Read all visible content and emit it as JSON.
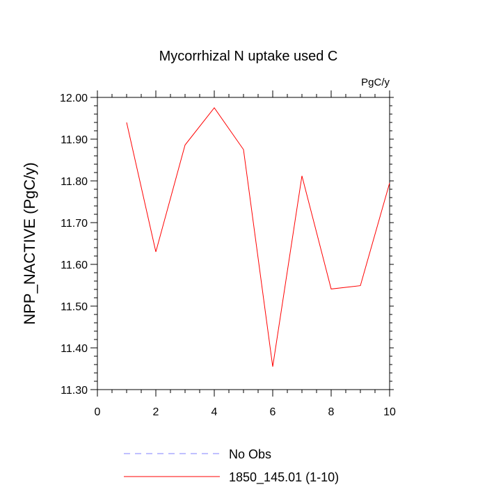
{
  "chart_data": {
    "type": "line",
    "title": "Mycorrhizal N uptake used C",
    "units_label": "PgC/y",
    "xlabel": "",
    "ylabel": "NPP_NACTIVE  (PgC/y)",
    "xlim": [
      0,
      10
    ],
    "ylim": [
      11.3,
      12.0
    ],
    "x_ticks": [
      "0",
      "2",
      "4",
      "6",
      "8",
      "10"
    ],
    "y_ticks": [
      "11.30",
      "11.40",
      "11.50",
      "11.60",
      "11.70",
      "11.80",
      "11.90",
      "12.00"
    ],
    "grid": false,
    "legend_position": "bottom",
    "series": [
      {
        "name": "No Obs",
        "color": "#8080ff",
        "dash": "dashed",
        "x": [],
        "values": []
      },
      {
        "name": "1850_145.01 (1-10)",
        "color": "#ff0000",
        "dash": "solid",
        "x": [
          1,
          2,
          3,
          4,
          5,
          6,
          7,
          8,
          9,
          10
        ],
        "values": [
          11.94,
          11.63,
          11.886,
          11.975,
          11.875,
          11.355,
          11.812,
          11.541,
          11.549,
          11.795
        ]
      }
    ]
  }
}
